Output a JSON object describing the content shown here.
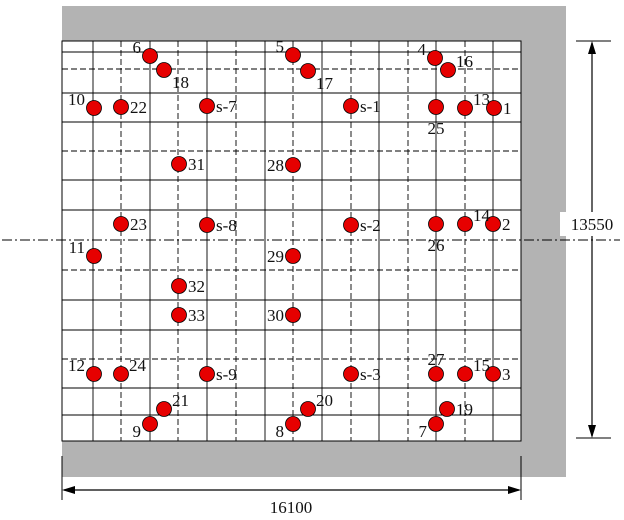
{
  "dimensions": {
    "width_label": "16100",
    "height_label": "13550"
  },
  "colors": {
    "slab_fill": "#ffffff",
    "border_fill": "#b3b3b3",
    "marker": "#e60000",
    "grid": "#000000"
  },
  "points": [
    {
      "label": "1"
    },
    {
      "label": "2"
    },
    {
      "label": "3"
    },
    {
      "label": "4"
    },
    {
      "label": "5"
    },
    {
      "label": "6"
    },
    {
      "label": "7"
    },
    {
      "label": "8"
    },
    {
      "label": "9"
    },
    {
      "label": "10"
    },
    {
      "label": "11"
    },
    {
      "label": "12"
    },
    {
      "label": "13"
    },
    {
      "label": "14"
    },
    {
      "label": "15"
    },
    {
      "label": "16"
    },
    {
      "label": "17"
    },
    {
      "label": "18"
    },
    {
      "label": "19"
    },
    {
      "label": "20"
    },
    {
      "label": "21"
    },
    {
      "label": "22"
    },
    {
      "label": "23"
    },
    {
      "label": "24"
    },
    {
      "label": "25"
    },
    {
      "label": "26"
    },
    {
      "label": "27"
    },
    {
      "label": "28"
    },
    {
      "label": "29"
    },
    {
      "label": "30"
    },
    {
      "label": "31"
    },
    {
      "label": "32"
    },
    {
      "label": "33"
    },
    {
      "label": "s-1"
    },
    {
      "label": "s-2"
    },
    {
      "label": "s-3"
    },
    {
      "label": "s-7"
    },
    {
      "label": "s-8"
    },
    {
      "label": "s-9"
    }
  ]
}
